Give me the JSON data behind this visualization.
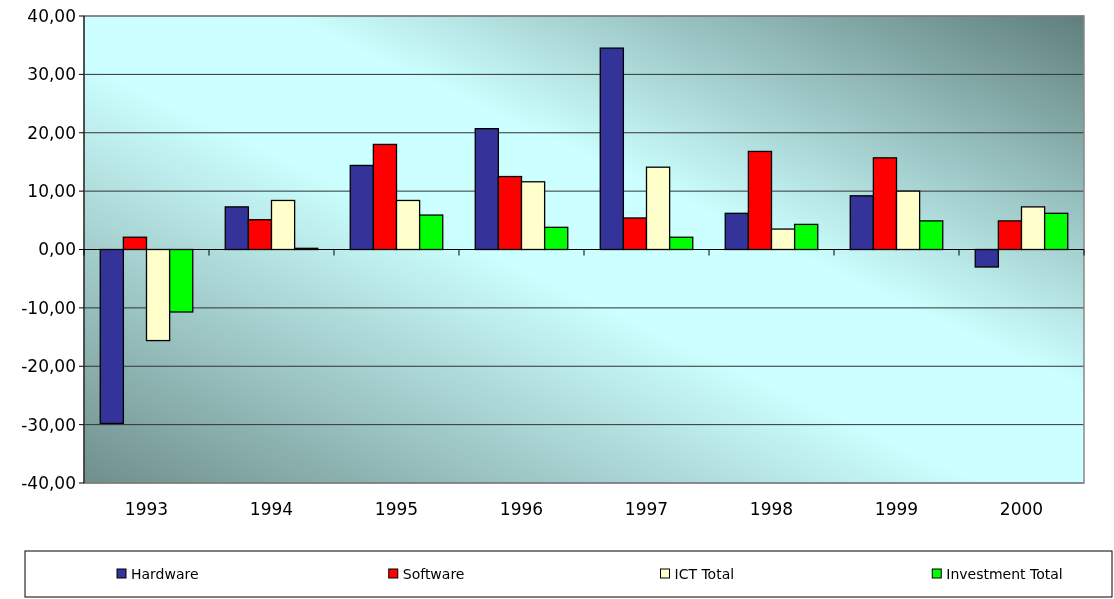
{
  "chart_data": {
    "type": "bar",
    "categories": [
      "1993",
      "1994",
      "1995",
      "1996",
      "1997",
      "1998",
      "1999",
      "2000"
    ],
    "series": [
      {
        "name": "Hardware",
        "color": "#333399",
        "values": [
          -29.8,
          7.3,
          14.4,
          20.7,
          34.5,
          6.2,
          9.2,
          -3.0
        ]
      },
      {
        "name": "Software",
        "color": "#ff0000",
        "values": [
          2.1,
          5.1,
          18.0,
          12.5,
          5.4,
          16.8,
          15.7,
          4.9
        ]
      },
      {
        "name": "ICT Total",
        "color": "#ffffcc",
        "values": [
          -15.6,
          8.4,
          8.4,
          11.6,
          14.1,
          3.5,
          10.0,
          7.3
        ]
      },
      {
        "name": "Investment Total",
        "color": "#00ff00",
        "values": [
          -10.7,
          0.2,
          5.9,
          3.8,
          2.1,
          4.3,
          4.9,
          6.2
        ]
      }
    ],
    "ylim": [
      -40,
      40
    ],
    "yticks": [
      {
        "value": -40,
        "label": "-40,00"
      },
      {
        "value": -30,
        "label": "-30,00"
      },
      {
        "value": -20,
        "label": "-20,00"
      },
      {
        "value": -10,
        "label": "-10,00"
      },
      {
        "value": 0,
        "label": "0,00"
      },
      {
        "value": 10,
        "label": "10,00"
      },
      {
        "value": 20,
        "label": "20,00"
      },
      {
        "value": 30,
        "label": "30,00"
      },
      {
        "value": 40,
        "label": "40,00"
      }
    ],
    "grid": "y",
    "legend": "bottom"
  }
}
